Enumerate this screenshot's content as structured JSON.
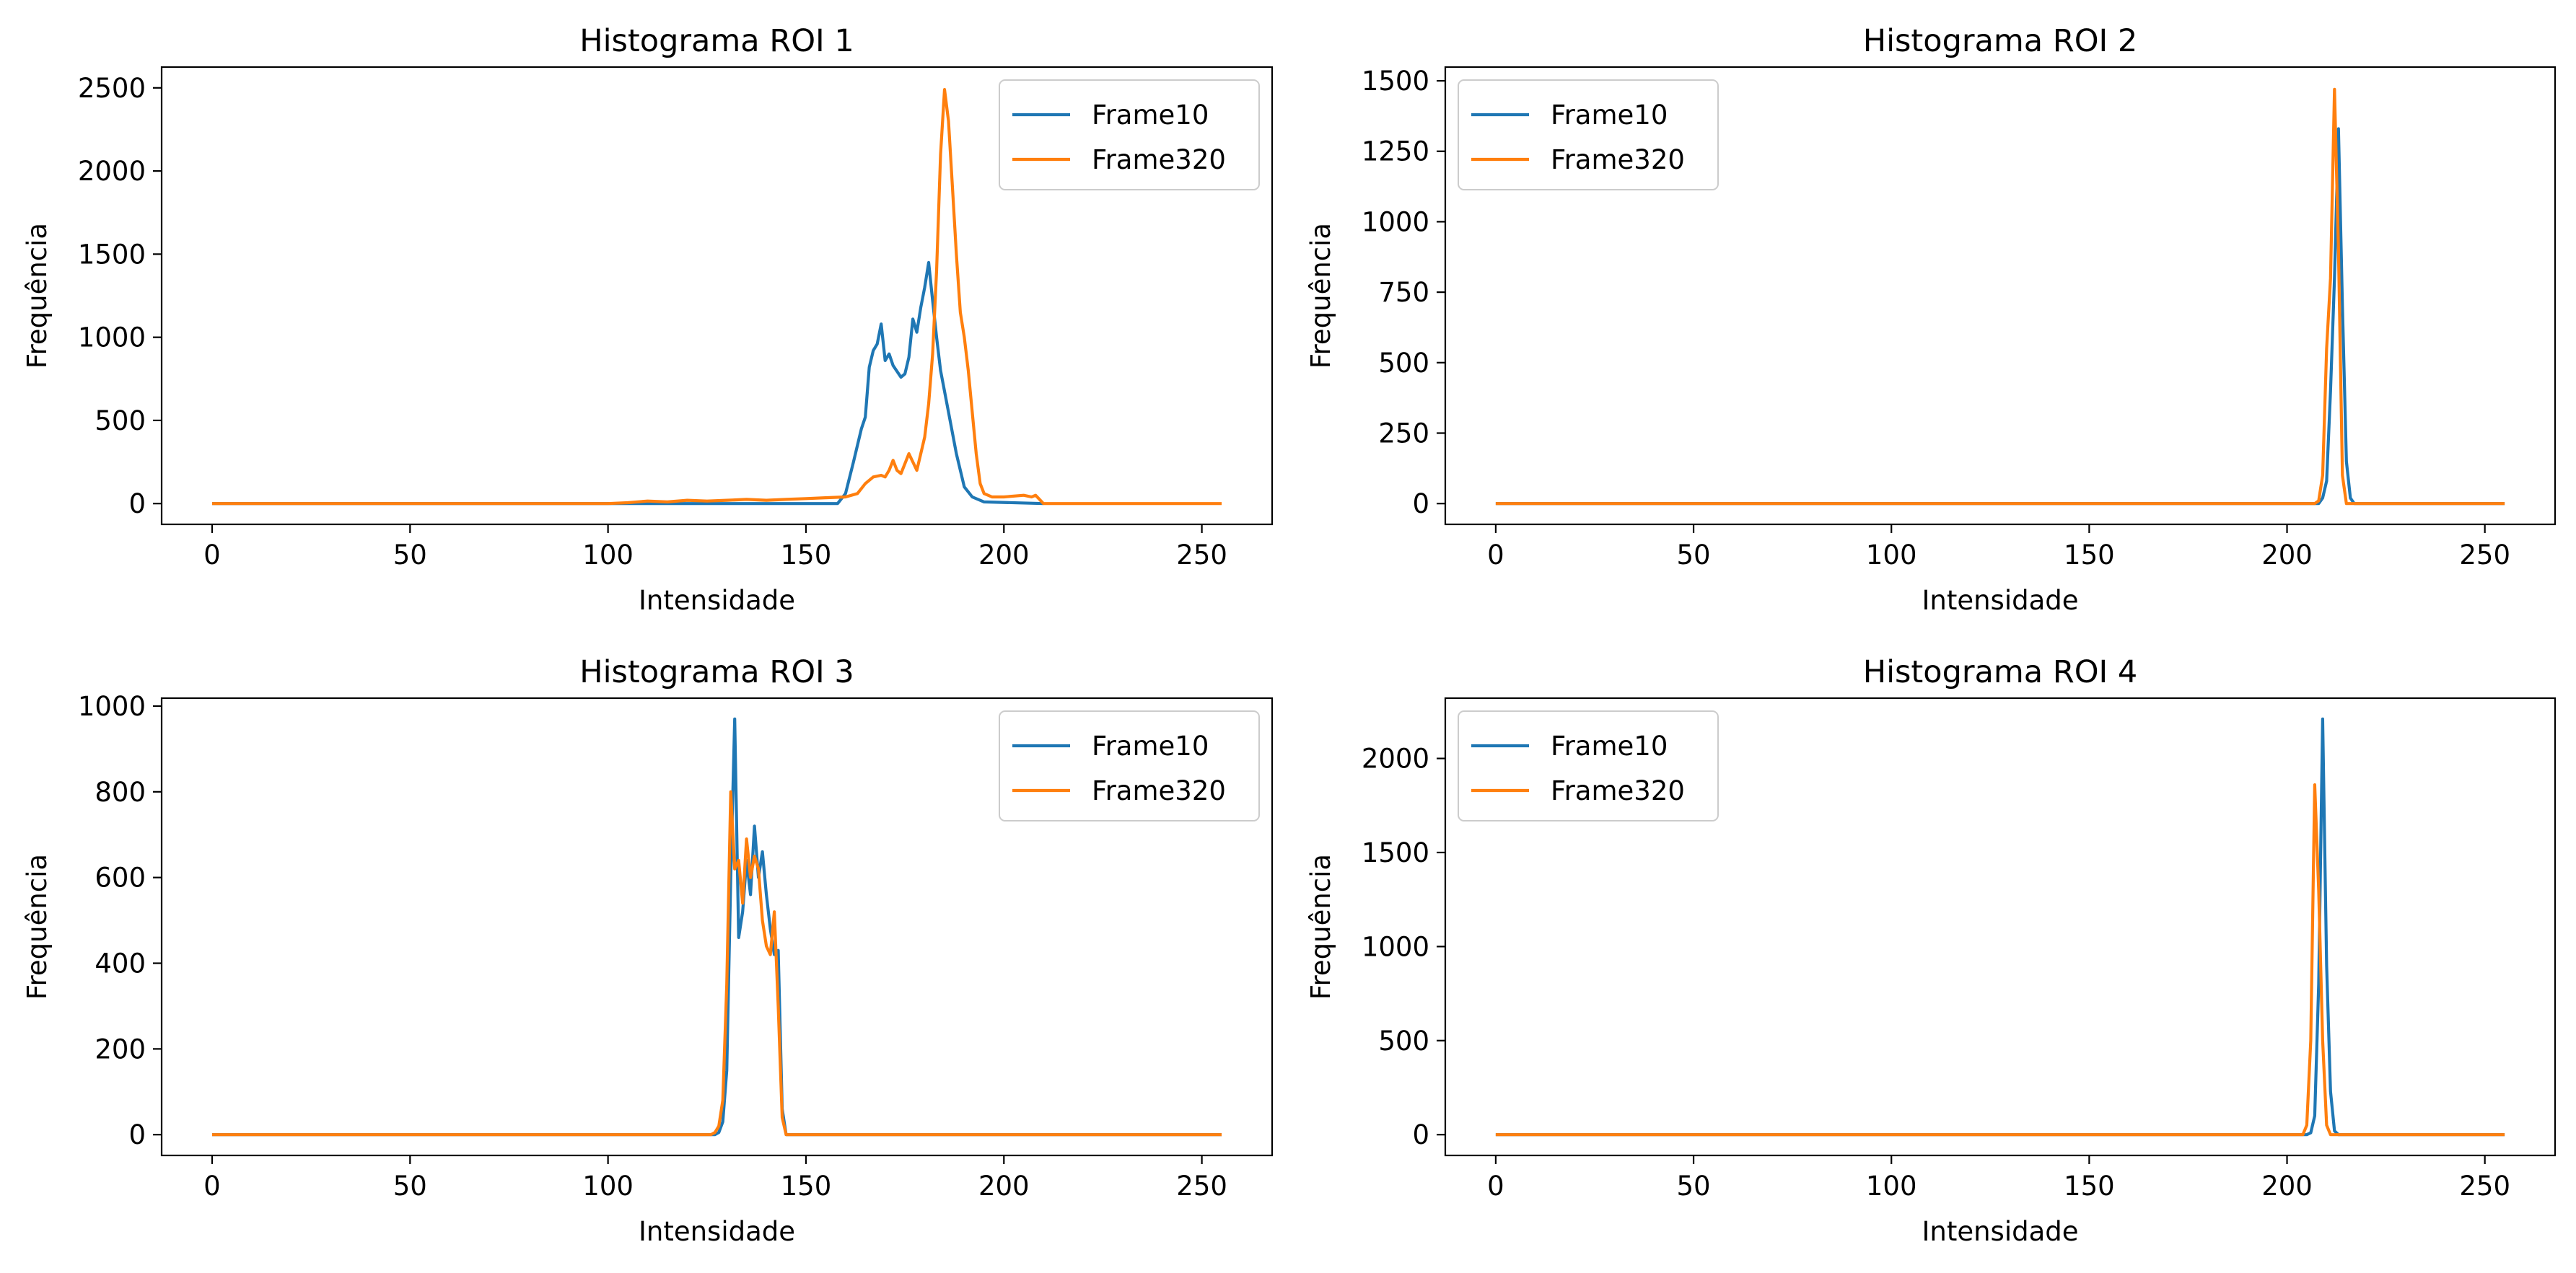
{
  "colors": {
    "frame10": "#1f77b4",
    "frame320": "#ff7f0e"
  },
  "chart_data": [
    {
      "type": "line",
      "title": "Histograma ROI 1",
      "xlabel": "Intensidade",
      "ylabel": "Frequência",
      "xlim": [
        -12.75,
        267.75
      ],
      "ylim": [
        -125,
        2625
      ],
      "xticks": [
        0,
        50,
        100,
        150,
        200,
        250
      ],
      "yticks": [
        0,
        500,
        1000,
        1500,
        2000,
        2500
      ],
      "legend": "top-right",
      "series": [
        {
          "name": "Frame10",
          "color": "#1f77b4",
          "points": [
            [
              0,
              0
            ],
            [
              150,
              0
            ],
            [
              158,
              0
            ],
            [
              160,
              60
            ],
            [
              162,
              250
            ],
            [
              164,
              450
            ],
            [
              165,
              520
            ],
            [
              166,
              820
            ],
            [
              167,
              920
            ],
            [
              168,
              960
            ],
            [
              169,
              1080
            ],
            [
              170,
              860
            ],
            [
              171,
              900
            ],
            [
              172,
              830
            ],
            [
              174,
              760
            ],
            [
              175,
              780
            ],
            [
              176,
              880
            ],
            [
              177,
              1110
            ],
            [
              178,
              1030
            ],
            [
              179,
              1180
            ],
            [
              180,
              1300
            ],
            [
              181,
              1450
            ],
            [
              182,
              1220
            ],
            [
              183,
              1000
            ],
            [
              184,
              800
            ],
            [
              186,
              550
            ],
            [
              188,
              300
            ],
            [
              190,
              100
            ],
            [
              192,
              40
            ],
            [
              195,
              10
            ],
            [
              210,
              0
            ]
          ]
        },
        {
          "name": "Frame320",
          "color": "#ff7f0e",
          "points": [
            [
              0,
              0
            ],
            [
              100,
              0
            ],
            [
              105,
              5
            ],
            [
              110,
              15
            ],
            [
              115,
              10
            ],
            [
              120,
              20
            ],
            [
              125,
              15
            ],
            [
              130,
              20
            ],
            [
              135,
              25
            ],
            [
              140,
              20
            ],
            [
              145,
              25
            ],
            [
              150,
              30
            ],
            [
              155,
              35
            ],
            [
              160,
              40
            ],
            [
              163,
              60
            ],
            [
              165,
              120
            ],
            [
              167,
              160
            ],
            [
              169,
              170
            ],
            [
              170,
              160
            ],
            [
              171,
              200
            ],
            [
              172,
              260
            ],
            [
              173,
              200
            ],
            [
              174,
              180
            ],
            [
              175,
              240
            ],
            [
              176,
              300
            ],
            [
              177,
              250
            ],
            [
              178,
              200
            ],
            [
              179,
              300
            ],
            [
              180,
              400
            ],
            [
              181,
              600
            ],
            [
              182,
              900
            ],
            [
              183,
              1400
            ],
            [
              184,
              2100
            ],
            [
              185,
              2490
            ],
            [
              186,
              2300
            ],
            [
              187,
              1900
            ],
            [
              188,
              1500
            ],
            [
              189,
              1150
            ],
            [
              190,
              1000
            ],
            [
              191,
              800
            ],
            [
              192,
              550
            ],
            [
              193,
              300
            ],
            [
              194,
              120
            ],
            [
              195,
              60
            ],
            [
              197,
              40
            ],
            [
              200,
              40
            ],
            [
              205,
              50
            ],
            [
              207,
              40
            ],
            [
              208,
              50
            ],
            [
              210,
              0
            ],
            [
              255,
              0
            ]
          ]
        }
      ]
    },
    {
      "type": "line",
      "title": "Histograma ROI 2",
      "xlabel": "Intensidade",
      "ylabel": "Frequência",
      "xlim": [
        -12.75,
        267.75
      ],
      "ylim": [
        -73.75,
        1548.75
      ],
      "xticks": [
        0,
        50,
        100,
        150,
        200,
        250
      ],
      "yticks": [
        0,
        250,
        500,
        750,
        1000,
        1250,
        1500
      ],
      "legend": "top-left",
      "series": [
        {
          "name": "Frame10",
          "color": "#1f77b4",
          "points": [
            [
              0,
              0
            ],
            [
              208,
              0
            ],
            [
              209,
              20
            ],
            [
              210,
              80
            ],
            [
              211,
              400
            ],
            [
              212,
              800
            ],
            [
              213,
              1330
            ],
            [
              214,
              700
            ],
            [
              215,
              150
            ],
            [
              216,
              20
            ],
            [
              217,
              0
            ],
            [
              255,
              0
            ]
          ]
        },
        {
          "name": "Frame320",
          "color": "#ff7f0e",
          "points": [
            [
              0,
              0
            ],
            [
              207,
              0
            ],
            [
              208,
              10
            ],
            [
              209,
              100
            ],
            [
              210,
              550
            ],
            [
              211,
              800
            ],
            [
              212,
              1470
            ],
            [
              213,
              900
            ],
            [
              214,
              100
            ],
            [
              215,
              0
            ],
            [
              255,
              0
            ]
          ]
        }
      ]
    },
    {
      "type": "line",
      "title": "Histograma ROI 3",
      "xlabel": "Intensidade",
      "ylabel": "Frequência",
      "xlim": [
        -12.75,
        267.75
      ],
      "ylim": [
        -48.5,
        1018.5
      ],
      "xticks": [
        0,
        50,
        100,
        150,
        200,
        250
      ],
      "yticks": [
        0,
        200,
        400,
        600,
        800,
        1000
      ],
      "legend": "top-right",
      "series": [
        {
          "name": "Frame10",
          "color": "#1f77b4",
          "points": [
            [
              0,
              0
            ],
            [
              127,
              0
            ],
            [
              128,
              5
            ],
            [
              129,
              30
            ],
            [
              130,
              150
            ],
            [
              131,
              600
            ],
            [
              132,
              970
            ],
            [
              133,
              460
            ],
            [
              134,
              520
            ],
            [
              135,
              640
            ],
            [
              136,
              560
            ],
            [
              137,
              720
            ],
            [
              138,
              600
            ],
            [
              139,
              660
            ],
            [
              140,
              560
            ],
            [
              141,
              480
            ],
            [
              142,
              420
            ],
            [
              143,
              430
            ],
            [
              144,
              60
            ],
            [
              145,
              0
            ],
            [
              255,
              0
            ]
          ]
        },
        {
          "name": "Frame320",
          "color": "#ff7f0e",
          "points": [
            [
              0,
              0
            ],
            [
              126,
              0
            ],
            [
              127,
              5
            ],
            [
              128,
              20
            ],
            [
              129,
              80
            ],
            [
              130,
              350
            ],
            [
              131,
              800
            ],
            [
              132,
              620
            ],
            [
              133,
              640
            ],
            [
              134,
              540
            ],
            [
              135,
              690
            ],
            [
              136,
              600
            ],
            [
              137,
              650
            ],
            [
              138,
              620
            ],
            [
              139,
              500
            ],
            [
              140,
              440
            ],
            [
              141,
              420
            ],
            [
              142,
              520
            ],
            [
              143,
              300
            ],
            [
              144,
              40
            ],
            [
              145,
              0
            ],
            [
              255,
              0
            ]
          ]
        }
      ]
    },
    {
      "type": "line",
      "title": "Histograma ROI 4",
      "xlabel": "Intensidade",
      "ylabel": "Frequência",
      "xlim": [
        -12.75,
        267.75
      ],
      "ylim": [
        -110.5,
        2320.5
      ],
      "xticks": [
        0,
        50,
        100,
        150,
        200,
        250
      ],
      "yticks": [
        0,
        500,
        1000,
        1500,
        2000
      ],
      "legend": "top-left",
      "series": [
        {
          "name": "Frame10",
          "color": "#1f77b4",
          "points": [
            [
              0,
              0
            ],
            [
              205,
              0
            ],
            [
              206,
              10
            ],
            [
              207,
              100
            ],
            [
              208,
              800
            ],
            [
              209,
              2210
            ],
            [
              210,
              900
            ],
            [
              211,
              230
            ],
            [
              212,
              20
            ],
            [
              213,
              0
            ],
            [
              255,
              0
            ]
          ]
        },
        {
          "name": "Frame320",
          "color": "#ff7f0e",
          "points": [
            [
              0,
              0
            ],
            [
              204,
              0
            ],
            [
              205,
              50
            ],
            [
              206,
              500
            ],
            [
              207,
              1860
            ],
            [
              208,
              1300
            ],
            [
              209,
              500
            ],
            [
              210,
              50
            ],
            [
              211,
              0
            ],
            [
              255,
              0
            ]
          ]
        }
      ]
    }
  ]
}
